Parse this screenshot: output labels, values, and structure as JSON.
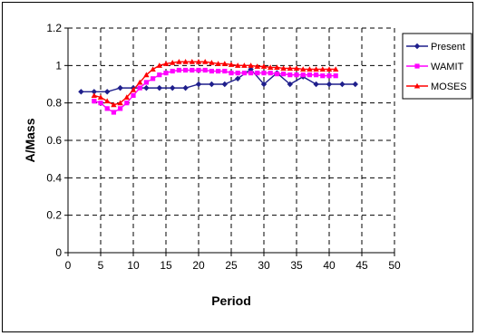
{
  "chart_data": {
    "type": "line",
    "title": "",
    "xlabel": "Period",
    "ylabel": "A/Mass",
    "xlim": [
      0,
      50
    ],
    "ylim": [
      0,
      1.2
    ],
    "xticks": [
      0,
      5,
      10,
      15,
      20,
      25,
      30,
      35,
      40,
      45,
      50
    ],
    "yticks": [
      0,
      0.2,
      0.4,
      0.6,
      0.8,
      1,
      1.2
    ],
    "grid": "dashed",
    "legend_position": "right",
    "series": [
      {
        "name": "Present",
        "color": "#1f1f8c",
        "marker": "diamond",
        "x": [
          2,
          4,
          6,
          8,
          10,
          12,
          14,
          16,
          18,
          20,
          22,
          24,
          26,
          28,
          30,
          32,
          34,
          36,
          38,
          40,
          42,
          44
        ],
        "y": [
          0.86,
          0.86,
          0.86,
          0.88,
          0.88,
          0.88,
          0.88,
          0.88,
          0.88,
          0.9,
          0.9,
          0.9,
          0.93,
          0.98,
          0.9,
          0.96,
          0.9,
          0.94,
          0.9,
          0.9,
          0.9,
          0.9
        ]
      },
      {
        "name": "WAMIT",
        "color": "#ff00ff",
        "marker": "square",
        "x": [
          4,
          5,
          6,
          7,
          8,
          9,
          10,
          11,
          12,
          13,
          14,
          15,
          16,
          17,
          18,
          19,
          20,
          21,
          22,
          23,
          24,
          25,
          26,
          27,
          28,
          29,
          30,
          31,
          32,
          33,
          34,
          35,
          36,
          37,
          38,
          39,
          40,
          41
        ],
        "y": [
          0.81,
          0.8,
          0.77,
          0.75,
          0.77,
          0.8,
          0.84,
          0.88,
          0.91,
          0.93,
          0.95,
          0.96,
          0.97,
          0.975,
          0.975,
          0.975,
          0.975,
          0.975,
          0.97,
          0.97,
          0.97,
          0.96,
          0.96,
          0.96,
          0.96,
          0.96,
          0.96,
          0.96,
          0.955,
          0.955,
          0.95,
          0.95,
          0.95,
          0.95,
          0.95,
          0.945,
          0.945,
          0.945
        ]
      },
      {
        "name": "MOSES",
        "color": "#ff0000",
        "marker": "triangle",
        "x": [
          4,
          5,
          6,
          7,
          8,
          9,
          10,
          11,
          12,
          13,
          14,
          15,
          16,
          17,
          18,
          19,
          20,
          21,
          22,
          23,
          24,
          25,
          26,
          27,
          28,
          29,
          30,
          31,
          32,
          33,
          34,
          35,
          36,
          37,
          38,
          39,
          40,
          41
        ],
        "y": [
          0.84,
          0.83,
          0.81,
          0.79,
          0.8,
          0.83,
          0.87,
          0.91,
          0.95,
          0.98,
          1.0,
          1.01,
          1.015,
          1.02,
          1.02,
          1.02,
          1.02,
          1.02,
          1.015,
          1.01,
          1.01,
          1.005,
          1.0,
          1.0,
          1.0,
          0.995,
          0.995,
          0.99,
          0.99,
          0.985,
          0.985,
          0.985,
          0.98,
          0.98,
          0.98,
          0.98,
          0.98,
          0.98
        ]
      }
    ]
  }
}
